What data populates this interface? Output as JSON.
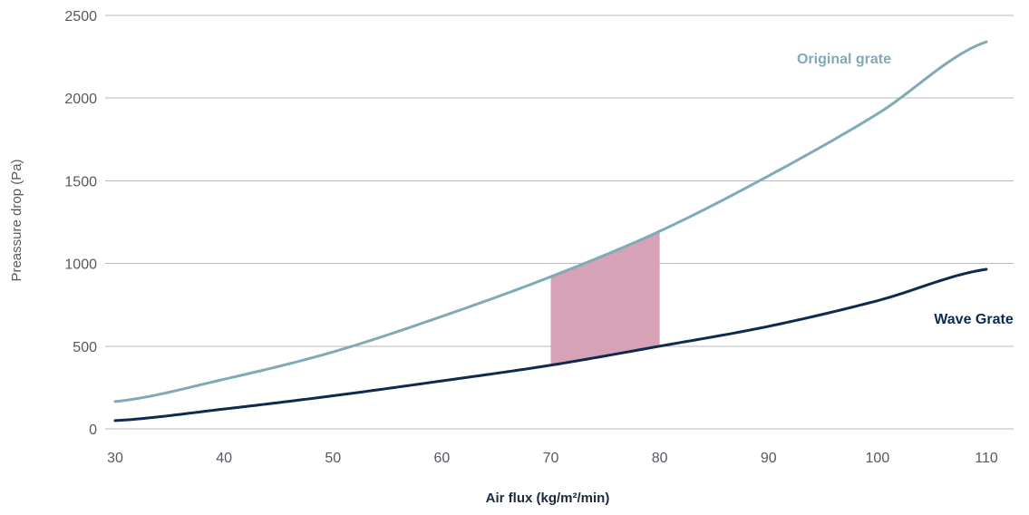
{
  "chart_data": {
    "type": "line",
    "title": "",
    "xlabel": "Air flux (kg/m²/min)",
    "ylabel": "Preassure drop (Pa)",
    "xlim": [
      30,
      110
    ],
    "ylim": [
      0,
      2500
    ],
    "xticks": [
      30,
      40,
      50,
      60,
      70,
      80,
      90,
      100,
      110
    ],
    "yticks": [
      0,
      500,
      1000,
      1500,
      2000,
      2500
    ],
    "grid": "horizontal",
    "legend": "none",
    "series": [
      {
        "name": "Original grate",
        "color": "#7faab7",
        "x": [
          30,
          40,
          50,
          60,
          70,
          80,
          90,
          100,
          110
        ],
        "y": [
          165,
          300,
          465,
          680,
          920,
          1195,
          1530,
          1905,
          2340
        ]
      },
      {
        "name": "Wave Grate",
        "color": "#0e2a4f",
        "x": [
          30,
          40,
          50,
          60,
          70,
          80,
          90,
          100,
          110
        ],
        "y": [
          50,
          120,
          200,
          290,
          385,
          500,
          620,
          775,
          965
        ]
      }
    ],
    "highlight": {
      "x_range": [
        70,
        80
      ],
      "color": "#d7a2b5"
    }
  }
}
